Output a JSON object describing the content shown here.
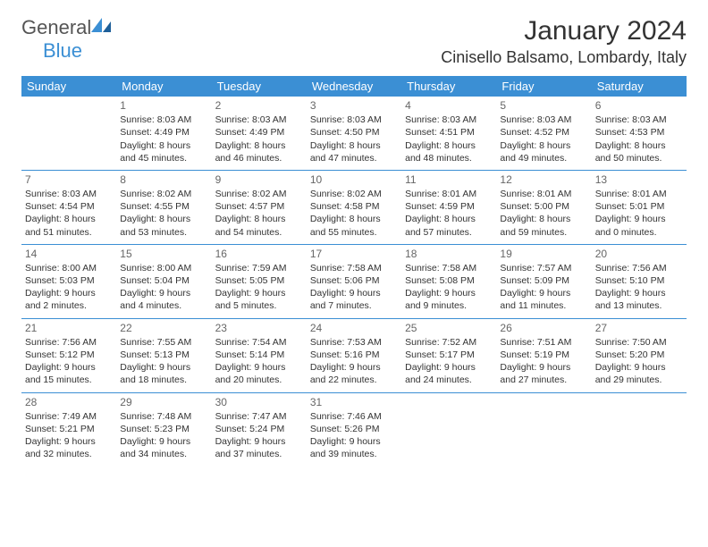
{
  "logo": {
    "general": "General",
    "blue": "Blue"
  },
  "title": "January 2024",
  "location": "Cinisello Balsamo, Lombardy, Italy",
  "colors": {
    "header_bg": "#3b8fd4",
    "header_text": "#ffffff",
    "rule": "#3b8fd4",
    "text": "#333333",
    "daynum": "#666666"
  },
  "fonts": {
    "title_size": 30,
    "location_size": 18,
    "dayname_size": 13,
    "cell_size": 10.5
  },
  "day_names": [
    "Sunday",
    "Monday",
    "Tuesday",
    "Wednesday",
    "Thursday",
    "Friday",
    "Saturday"
  ],
  "weeks": [
    [
      null,
      {
        "n": "1",
        "sr": "Sunrise: 8:03 AM",
        "ss": "Sunset: 4:49 PM",
        "d1": "Daylight: 8 hours",
        "d2": "and 45 minutes."
      },
      {
        "n": "2",
        "sr": "Sunrise: 8:03 AM",
        "ss": "Sunset: 4:49 PM",
        "d1": "Daylight: 8 hours",
        "d2": "and 46 minutes."
      },
      {
        "n": "3",
        "sr": "Sunrise: 8:03 AM",
        "ss": "Sunset: 4:50 PM",
        "d1": "Daylight: 8 hours",
        "d2": "and 47 minutes."
      },
      {
        "n": "4",
        "sr": "Sunrise: 8:03 AM",
        "ss": "Sunset: 4:51 PM",
        "d1": "Daylight: 8 hours",
        "d2": "and 48 minutes."
      },
      {
        "n": "5",
        "sr": "Sunrise: 8:03 AM",
        "ss": "Sunset: 4:52 PM",
        "d1": "Daylight: 8 hours",
        "d2": "and 49 minutes."
      },
      {
        "n": "6",
        "sr": "Sunrise: 8:03 AM",
        "ss": "Sunset: 4:53 PM",
        "d1": "Daylight: 8 hours",
        "d2": "and 50 minutes."
      }
    ],
    [
      {
        "n": "7",
        "sr": "Sunrise: 8:03 AM",
        "ss": "Sunset: 4:54 PM",
        "d1": "Daylight: 8 hours",
        "d2": "and 51 minutes."
      },
      {
        "n": "8",
        "sr": "Sunrise: 8:02 AM",
        "ss": "Sunset: 4:55 PM",
        "d1": "Daylight: 8 hours",
        "d2": "and 53 minutes."
      },
      {
        "n": "9",
        "sr": "Sunrise: 8:02 AM",
        "ss": "Sunset: 4:57 PM",
        "d1": "Daylight: 8 hours",
        "d2": "and 54 minutes."
      },
      {
        "n": "10",
        "sr": "Sunrise: 8:02 AM",
        "ss": "Sunset: 4:58 PM",
        "d1": "Daylight: 8 hours",
        "d2": "and 55 minutes."
      },
      {
        "n": "11",
        "sr": "Sunrise: 8:01 AM",
        "ss": "Sunset: 4:59 PM",
        "d1": "Daylight: 8 hours",
        "d2": "and 57 minutes."
      },
      {
        "n": "12",
        "sr": "Sunrise: 8:01 AM",
        "ss": "Sunset: 5:00 PM",
        "d1": "Daylight: 8 hours",
        "d2": "and 59 minutes."
      },
      {
        "n": "13",
        "sr": "Sunrise: 8:01 AM",
        "ss": "Sunset: 5:01 PM",
        "d1": "Daylight: 9 hours",
        "d2": "and 0 minutes."
      }
    ],
    [
      {
        "n": "14",
        "sr": "Sunrise: 8:00 AM",
        "ss": "Sunset: 5:03 PM",
        "d1": "Daylight: 9 hours",
        "d2": "and 2 minutes."
      },
      {
        "n": "15",
        "sr": "Sunrise: 8:00 AM",
        "ss": "Sunset: 5:04 PM",
        "d1": "Daylight: 9 hours",
        "d2": "and 4 minutes."
      },
      {
        "n": "16",
        "sr": "Sunrise: 7:59 AM",
        "ss": "Sunset: 5:05 PM",
        "d1": "Daylight: 9 hours",
        "d2": "and 5 minutes."
      },
      {
        "n": "17",
        "sr": "Sunrise: 7:58 AM",
        "ss": "Sunset: 5:06 PM",
        "d1": "Daylight: 9 hours",
        "d2": "and 7 minutes."
      },
      {
        "n": "18",
        "sr": "Sunrise: 7:58 AM",
        "ss": "Sunset: 5:08 PM",
        "d1": "Daylight: 9 hours",
        "d2": "and 9 minutes."
      },
      {
        "n": "19",
        "sr": "Sunrise: 7:57 AM",
        "ss": "Sunset: 5:09 PM",
        "d1": "Daylight: 9 hours",
        "d2": "and 11 minutes."
      },
      {
        "n": "20",
        "sr": "Sunrise: 7:56 AM",
        "ss": "Sunset: 5:10 PM",
        "d1": "Daylight: 9 hours",
        "d2": "and 13 minutes."
      }
    ],
    [
      {
        "n": "21",
        "sr": "Sunrise: 7:56 AM",
        "ss": "Sunset: 5:12 PM",
        "d1": "Daylight: 9 hours",
        "d2": "and 15 minutes."
      },
      {
        "n": "22",
        "sr": "Sunrise: 7:55 AM",
        "ss": "Sunset: 5:13 PM",
        "d1": "Daylight: 9 hours",
        "d2": "and 18 minutes."
      },
      {
        "n": "23",
        "sr": "Sunrise: 7:54 AM",
        "ss": "Sunset: 5:14 PM",
        "d1": "Daylight: 9 hours",
        "d2": "and 20 minutes."
      },
      {
        "n": "24",
        "sr": "Sunrise: 7:53 AM",
        "ss": "Sunset: 5:16 PM",
        "d1": "Daylight: 9 hours",
        "d2": "and 22 minutes."
      },
      {
        "n": "25",
        "sr": "Sunrise: 7:52 AM",
        "ss": "Sunset: 5:17 PM",
        "d1": "Daylight: 9 hours",
        "d2": "and 24 minutes."
      },
      {
        "n": "26",
        "sr": "Sunrise: 7:51 AM",
        "ss": "Sunset: 5:19 PM",
        "d1": "Daylight: 9 hours",
        "d2": "and 27 minutes."
      },
      {
        "n": "27",
        "sr": "Sunrise: 7:50 AM",
        "ss": "Sunset: 5:20 PM",
        "d1": "Daylight: 9 hours",
        "d2": "and 29 minutes."
      }
    ],
    [
      {
        "n": "28",
        "sr": "Sunrise: 7:49 AM",
        "ss": "Sunset: 5:21 PM",
        "d1": "Daylight: 9 hours",
        "d2": "and 32 minutes."
      },
      {
        "n": "29",
        "sr": "Sunrise: 7:48 AM",
        "ss": "Sunset: 5:23 PM",
        "d1": "Daylight: 9 hours",
        "d2": "and 34 minutes."
      },
      {
        "n": "30",
        "sr": "Sunrise: 7:47 AM",
        "ss": "Sunset: 5:24 PM",
        "d1": "Daylight: 9 hours",
        "d2": "and 37 minutes."
      },
      {
        "n": "31",
        "sr": "Sunrise: 7:46 AM",
        "ss": "Sunset: 5:26 PM",
        "d1": "Daylight: 9 hours",
        "d2": "and 39 minutes."
      },
      null,
      null,
      null
    ]
  ]
}
